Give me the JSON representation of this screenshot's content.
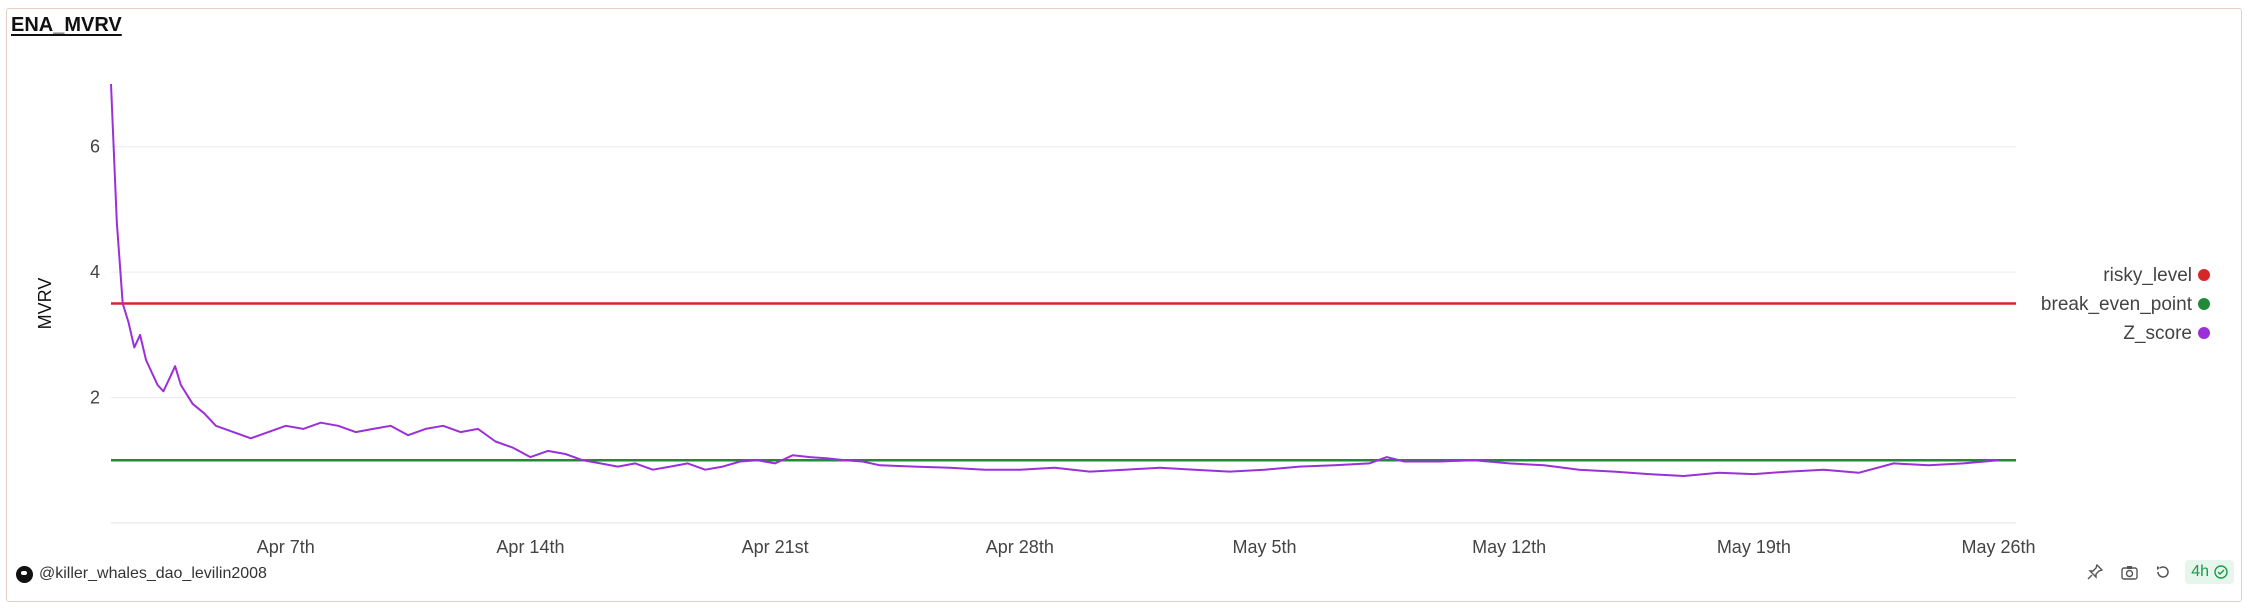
{
  "title": "ENA_MVRV",
  "footer": {
    "username": "@killer_whales_dao_levilin2008",
    "interval": "4h"
  },
  "icons": [
    "avatar-icon",
    "pin-icon",
    "camera-icon",
    "refresh-icon",
    "check-circle-icon"
  ],
  "chart_data": {
    "type": "line",
    "title": "ENA_MVRV",
    "ylabel": "MVRV",
    "xlabel": "",
    "ylim": [
      0.0,
      7.0
    ],
    "yticks": [
      2,
      4,
      6
    ],
    "xlim": [
      "2024-04-02",
      "2024-05-26T12:00"
    ],
    "xticks": [
      {
        "date": "2024-04-07",
        "label": "Apr 7th"
      },
      {
        "date": "2024-04-14",
        "label": "Apr 14th"
      },
      {
        "date": "2024-04-21",
        "label": "Apr 21st"
      },
      {
        "date": "2024-04-28",
        "label": "Apr 28th"
      },
      {
        "date": "2024-05-05",
        "label": "May 5th"
      },
      {
        "date": "2024-05-12",
        "label": "May 12th"
      },
      {
        "date": "2024-05-19",
        "label": "May 19th"
      },
      {
        "date": "2024-05-26",
        "label": "May 26th"
      }
    ],
    "grid": true,
    "legend_position": "right",
    "series": [
      {
        "name": "risky_level",
        "color": "#d62728",
        "constant": 3.5
      },
      {
        "name": "break_even_point",
        "color": "#1f8a3a",
        "constant": 1.0
      },
      {
        "name": "Z_score",
        "color": "#9b30d9",
        "x": [
          "2024-04-02",
          "2024-04-02T04:00",
          "2024-04-02T08:00",
          "2024-04-02T12:00",
          "2024-04-02T16:00",
          "2024-04-02T20:00",
          "2024-04-03",
          "2024-04-03T04:00",
          "2024-04-03T08:00",
          "2024-04-03T12:00",
          "2024-04-03T16:00",
          "2024-04-03T20:00",
          "2024-04-04",
          "2024-04-04T08:00",
          "2024-04-04T16:00",
          "2024-04-05",
          "2024-04-05T12:00",
          "2024-04-06",
          "2024-04-06T12:00",
          "2024-04-07",
          "2024-04-07T12:00",
          "2024-04-08",
          "2024-04-08T12:00",
          "2024-04-09",
          "2024-04-09T12:00",
          "2024-04-10",
          "2024-04-10T12:00",
          "2024-04-11",
          "2024-04-11T12:00",
          "2024-04-12",
          "2024-04-12T12:00",
          "2024-04-13",
          "2024-04-13T12:00",
          "2024-04-14",
          "2024-04-14T12:00",
          "2024-04-15",
          "2024-04-15T12:00",
          "2024-04-16",
          "2024-04-16T12:00",
          "2024-04-17",
          "2024-04-17T12:00",
          "2024-04-18",
          "2024-04-18T12:00",
          "2024-04-19",
          "2024-04-19T12:00",
          "2024-04-20",
          "2024-04-20T12:00",
          "2024-04-21",
          "2024-04-21T12:00",
          "2024-04-22",
          "2024-04-22T12:00",
          "2024-04-23",
          "2024-04-23T12:00",
          "2024-04-24",
          "2024-04-25",
          "2024-04-26",
          "2024-04-27",
          "2024-04-28",
          "2024-04-29",
          "2024-04-30",
          "2024-05-01",
          "2024-05-02",
          "2024-05-03",
          "2024-05-04",
          "2024-05-05",
          "2024-05-06",
          "2024-05-07",
          "2024-05-08",
          "2024-05-08T12:00",
          "2024-05-09",
          "2024-05-10",
          "2024-05-11",
          "2024-05-12",
          "2024-05-13",
          "2024-05-14",
          "2024-05-15",
          "2024-05-16",
          "2024-05-17",
          "2024-05-18",
          "2024-05-19",
          "2024-05-20",
          "2024-05-21",
          "2024-05-22",
          "2024-05-23",
          "2024-05-24",
          "2024-05-25",
          "2024-05-26"
        ],
        "y": [
          7.0,
          4.8,
          3.5,
          3.2,
          2.8,
          3.0,
          2.6,
          2.4,
          2.2,
          2.1,
          2.3,
          2.5,
          2.2,
          1.9,
          1.75,
          1.55,
          1.45,
          1.35,
          1.45,
          1.55,
          1.5,
          1.6,
          1.55,
          1.45,
          1.5,
          1.55,
          1.4,
          1.5,
          1.55,
          1.45,
          1.5,
          1.3,
          1.2,
          1.05,
          1.15,
          1.1,
          1.0,
          0.95,
          0.9,
          0.95,
          0.85,
          0.9,
          0.95,
          0.85,
          0.9,
          0.98,
          1.0,
          0.95,
          1.08,
          1.05,
          1.03,
          1.0,
          0.98,
          0.92,
          0.9,
          0.88,
          0.85,
          0.85,
          0.88,
          0.82,
          0.85,
          0.88,
          0.85,
          0.82,
          0.85,
          0.9,
          0.92,
          0.95,
          1.05,
          0.98,
          0.98,
          1.0,
          0.95,
          0.92,
          0.85,
          0.82,
          0.78,
          0.75,
          0.8,
          0.78,
          0.82,
          0.85,
          0.8,
          0.95,
          0.92,
          0.95,
          1.0
        ]
      }
    ],
    "legend": [
      "risky_level",
      "break_even_point",
      "Z_score"
    ]
  }
}
